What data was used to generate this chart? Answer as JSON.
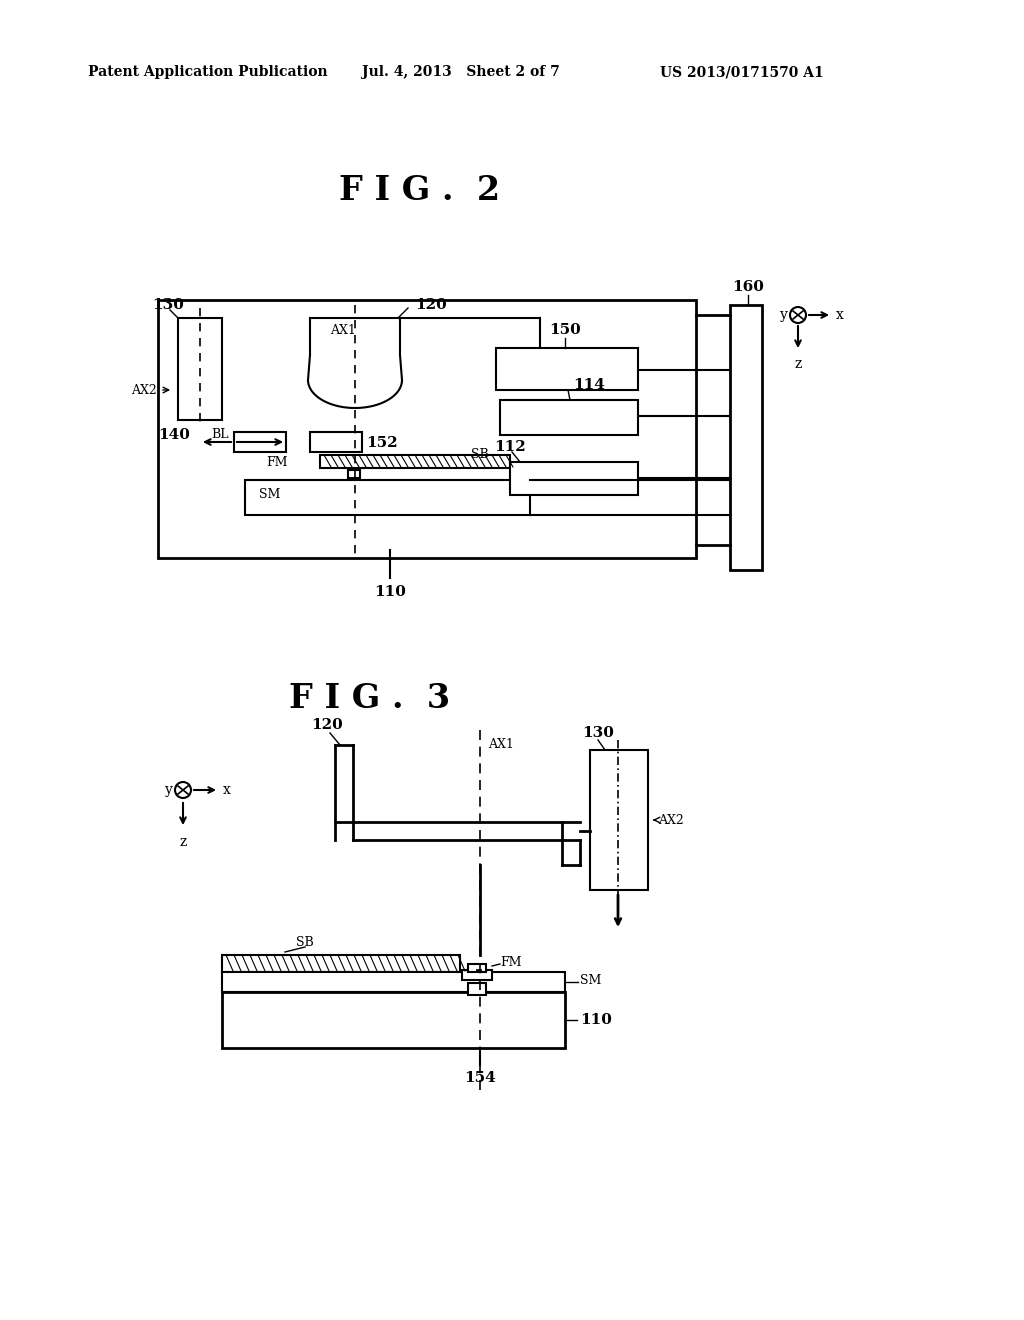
{
  "bg_color": "#ffffff",
  "header_left": "Patent Application Publication",
  "header_mid": "Jul. 4, 2013   Sheet 2 of 7",
  "header_right": "US 2013/0171570 A1",
  "fig2_title": "F I G .  2",
  "fig3_title": "F I G .  3"
}
